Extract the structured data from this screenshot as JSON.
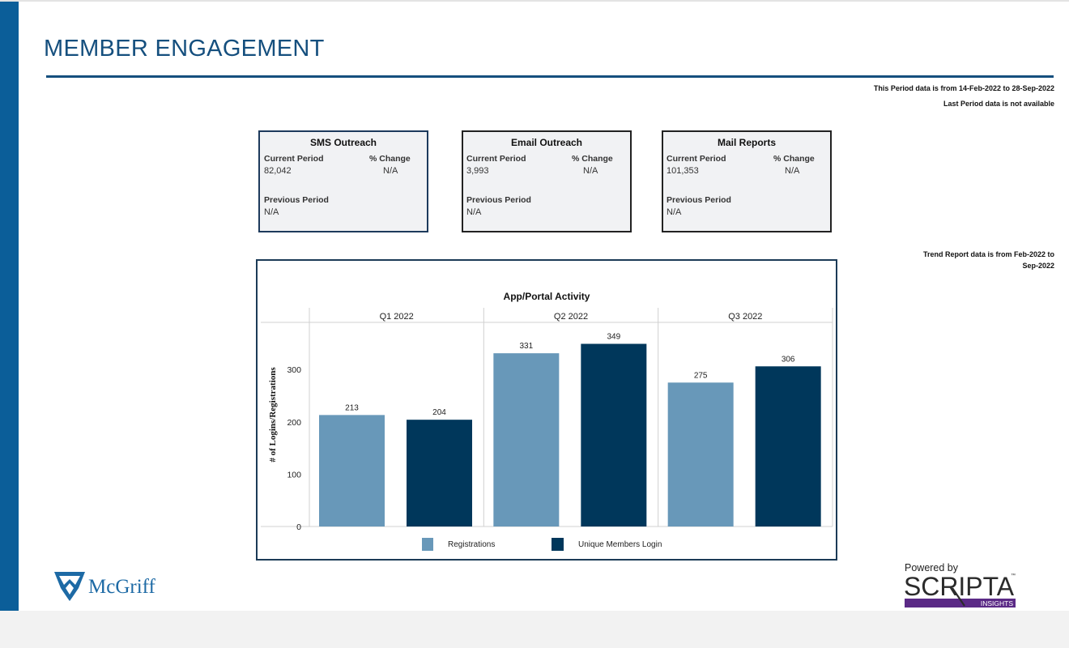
{
  "header": {
    "title": "MEMBER ENGAGEMENT",
    "period_note": "This Period data is from 14-Feb-2022 to 28-Sep-2022",
    "last_period_note": "Last Period data is not available",
    "trend_note_line1": "Trend Report data is from Feb-2022 to",
    "trend_note_line2": "Sep-2022"
  },
  "cards": [
    {
      "title": "SMS Outreach",
      "current_label": "Current Period",
      "change_label": "% Change",
      "current_value": "82,042",
      "change_value": "N/A",
      "previous_label": "Previous Period",
      "previous_value": "N/A"
    },
    {
      "title": "Email Outreach",
      "current_label": "Current Period",
      "change_label": "% Change",
      "current_value": "3,993",
      "change_value": "N/A",
      "previous_label": "Previous Period",
      "previous_value": "N/A"
    },
    {
      "title": "Mail Reports",
      "current_label": "Current Period",
      "change_label": "% Change",
      "current_value": "101,353",
      "change_value": "N/A",
      "previous_label": "Previous Period",
      "previous_value": "N/A"
    }
  ],
  "chart_data": {
    "type": "bar",
    "title": "App/Portal Activity",
    "ylabel": "# of Logins/Registrations",
    "xlabel": "",
    "categories": [
      "Q1 2022",
      "Q2 2022",
      "Q3 2022"
    ],
    "series": [
      {
        "name": "Registrations",
        "values": [
          213,
          331,
          275
        ],
        "color": "#6898b9"
      },
      {
        "name": "Unique Members Login",
        "values": [
          204,
          349,
          306
        ],
        "color": "#00375b"
      }
    ],
    "yticks": [
      0,
      100,
      200,
      300
    ],
    "ylim": [
      0,
      390
    ],
    "grid": false,
    "legend": "bottom"
  },
  "logos": {
    "mcgriff": {
      "text": "McGriff",
      "color": "#1d6aa5"
    },
    "scripta": {
      "powered": "Powered by",
      "word": "SCRIPTA",
      "tm": "™",
      "insights": "INSIGHTS",
      "accent": "#5b2a86"
    }
  }
}
